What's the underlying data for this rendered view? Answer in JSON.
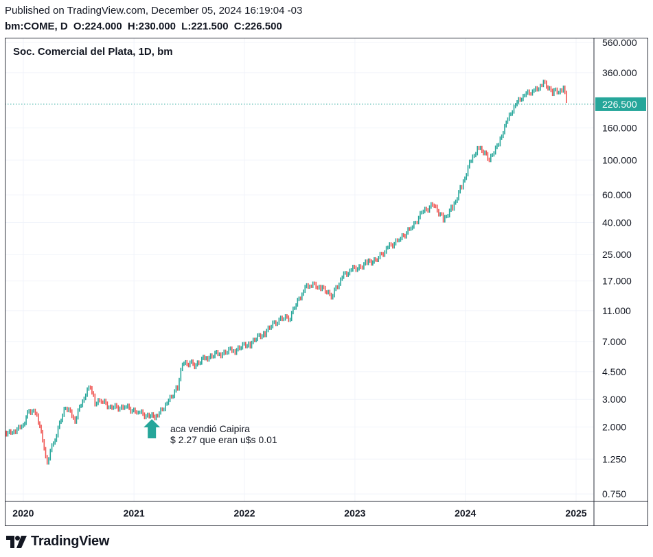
{
  "header": {
    "published": "Published on TradingView.com, December 05, 2024 16:19:04 -03",
    "symbol": "bm:COME, D",
    "open_label": "O:",
    "open_value": "224.000",
    "high_label": "H:",
    "high_value": "230.000",
    "low_label": "L:",
    "low_value": "221.500",
    "close_label": "C:",
    "close_value": "226.500"
  },
  "annotation": {
    "line1": "aca vendió Caipira",
    "line2": "$ 2.27 que eran u$s 0.01"
  },
  "brand": {
    "name": "TradingView"
  },
  "colors": {
    "up": "#26a69a",
    "down": "#ef5350",
    "last_price_bg": "#26a69a",
    "arrow": "#26a69a"
  },
  "chart_data": {
    "type": "line",
    "title": "Soc. Comercial del Plata, 1D, bm",
    "y_scale": "log",
    "ylim": [
      0.7,
      600
    ],
    "y_ticks": [
      {
        "v": 560,
        "label": "560.000"
      },
      {
        "v": 360,
        "label": "360.000"
      },
      {
        "v": 160,
        "label": "160.000"
      },
      {
        "v": 100,
        "label": "100.000"
      },
      {
        "v": 60,
        "label": "60.000"
      },
      {
        "v": 40,
        "label": "40.000"
      },
      {
        "v": 25,
        "label": "25.000"
      },
      {
        "v": 17,
        "label": "17.000"
      },
      {
        "v": 11,
        "label": "11.000"
      },
      {
        "v": 7,
        "label": "7.000"
      },
      {
        "v": 4.5,
        "label": "4.500"
      },
      {
        "v": 3,
        "label": "3.000"
      },
      {
        "v": 2,
        "label": "2.000"
      },
      {
        "v": 1.25,
        "label": "1.250"
      },
      {
        "v": 0.75,
        "label": "0.750"
      }
    ],
    "x_ticks": [
      {
        "date": "2020-01-01",
        "label": "2020"
      },
      {
        "date": "2021-01-01",
        "label": "2021"
      },
      {
        "date": "2022-01-01",
        "label": "2022"
      },
      {
        "date": "2023-01-01",
        "label": "2023"
      },
      {
        "date": "2024-01-01",
        "label": "2024"
      },
      {
        "date": "2025-01-01",
        "label": "2025"
      }
    ],
    "x_range": [
      "2019-11-01",
      "2025-03-01"
    ],
    "last_price": {
      "value": 226.5,
      "label": "226.500"
    },
    "annotation_marker": {
      "date": "2021-03-01",
      "value": 1.8
    },
    "series": [
      {
        "dates": [
          "2019-11-01",
          "2019-12-01",
          "2020-01-01",
          "2020-01-20",
          "2020-02-15",
          "2020-03-10",
          "2020-03-20",
          "2020-04-15",
          "2020-05-20",
          "2020-06-20",
          "2020-07-20",
          "2020-08-10",
          "2020-08-25",
          "2020-09-15",
          "2020-10-20",
          "2020-12-01",
          "2021-01-15",
          "2021-02-20",
          "2021-03-20",
          "2021-04-20",
          "2021-05-25",
          "2021-06-10",
          "2021-07-20",
          "2021-09-01",
          "2021-10-15",
          "2021-12-01",
          "2022-01-20",
          "2022-03-10",
          "2022-04-20",
          "2022-06-01",
          "2022-07-15",
          "2022-08-10",
          "2022-09-10",
          "2022-10-20",
          "2022-11-20",
          "2022-12-20",
          "2023-02-10",
          "2023-03-20",
          "2023-04-20",
          "2023-06-01",
          "2023-07-10",
          "2023-08-15",
          "2023-09-20",
          "2023-10-20",
          "2023-11-20",
          "2023-12-20",
          "2024-01-20",
          "2024-02-15",
          "2024-03-20",
          "2024-04-20",
          "2024-05-20",
          "2024-06-20",
          "2024-07-20",
          "2024-08-15",
          "2024-09-15",
          "2024-10-20",
          "2024-11-20",
          "2024-12-05"
        ],
        "values": [
          1.85,
          1.9,
          2.1,
          2.6,
          2.45,
          1.5,
          1.22,
          1.7,
          2.7,
          2.2,
          3.1,
          3.6,
          2.8,
          2.9,
          2.65,
          2.7,
          2.5,
          2.35,
          2.4,
          2.9,
          3.6,
          5.2,
          5.0,
          5.6,
          5.9,
          6.2,
          6.8,
          8.0,
          9.5,
          10.0,
          15.0,
          16.0,
          15.2,
          13.8,
          18.0,
          20.0,
          22.0,
          24.0,
          28.0,
          32.0,
          38.0,
          48.0,
          52.0,
          42.0,
          50.0,
          68.0,
          100.0,
          120.0,
          100.0,
          125.0,
          180.0,
          230.0,
          260.0,
          270.0,
          305.0,
          270.0,
          280.0,
          226.5
        ]
      }
    ]
  }
}
